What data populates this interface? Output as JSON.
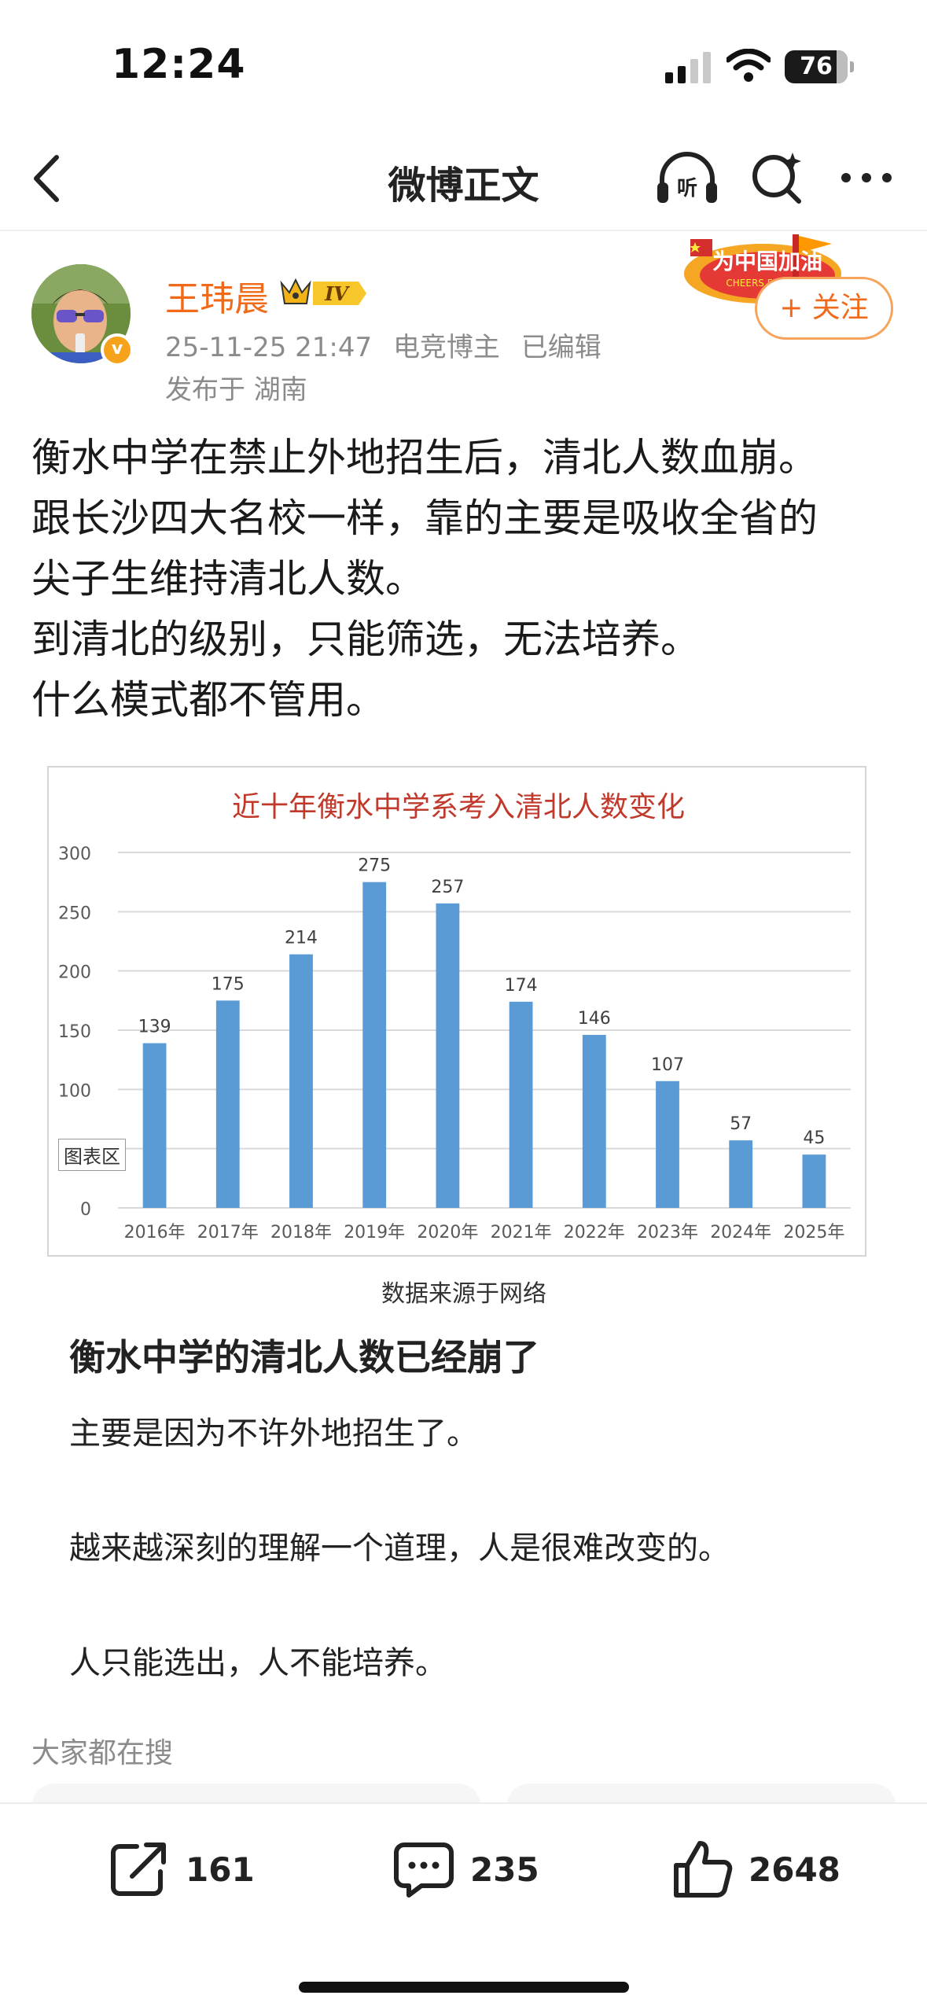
{
  "status_bar": {
    "time": "12:24",
    "battery": "76"
  },
  "nav": {
    "title": "微博正文"
  },
  "author": {
    "name": "王玮晨",
    "level": "IV",
    "date": "25-11-25 21:47",
    "role": "电竞博主",
    "edited": "已编辑",
    "location": "发布于 湖南",
    "follow_label": "+ 关注",
    "promo_text": "为中国加油",
    "promo_sub": "CHEERS FOR C"
  },
  "post": {
    "lines": [
      "衡水中学在禁止外地招生后，清北人数血崩。",
      "跟长沙四大名校一样，靠的主要是吸收全省的",
      "尖子生维持清北人数。",
      "到清北的级别，只能筛选，无法培养。",
      "什么模式都不管用。"
    ]
  },
  "chart_data": {
    "type": "bar",
    "title": "近十年衡水中学系考入清北人数变化",
    "categories": [
      "2016年",
      "2017年",
      "2018年",
      "2019年",
      "2020年",
      "2021年",
      "2022年",
      "2023年",
      "2024年",
      "2025年"
    ],
    "values": [
      139,
      175,
      214,
      275,
      257,
      174,
      146,
      107,
      57,
      45
    ],
    "yticks": [
      "0",
      "50",
      "100",
      "150",
      "200",
      "250",
      "300"
    ],
    "ylim": [
      0,
      300
    ],
    "grid": true,
    "bar_color": "#5b9bd5",
    "title_color": "#c0392b",
    "overlay_tag": "图表区",
    "source": "数据来源于网络"
  },
  "article": {
    "title": "衡水中学的清北人数已经崩了",
    "paragraphs": [
      "主要是因为不许外地招生了。",
      "越来越深刻的理解一个道理，人是很难改变的。",
      "人只能选出，人不能培养。"
    ]
  },
  "hot_search": {
    "label": "大家都在搜"
  },
  "actions": {
    "repost": "161",
    "comment": "235",
    "like": "2648"
  },
  "colors": {
    "accent": "#f06a19",
    "meta": "#8b8b8b"
  }
}
